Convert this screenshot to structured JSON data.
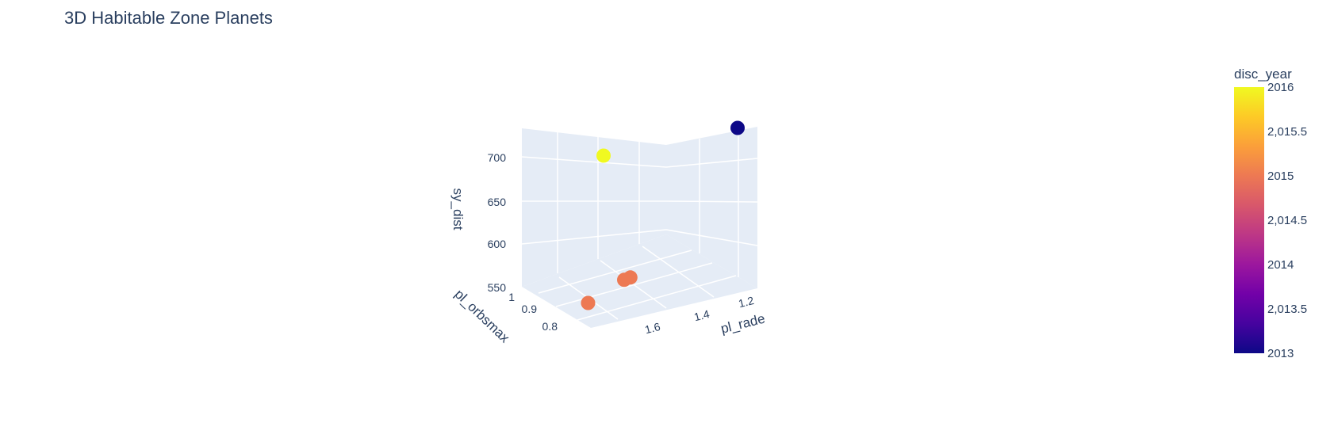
{
  "chart_data": {
    "type": "scatter",
    "title": "3D Habitable Zone Planets",
    "axes": {
      "x": {
        "label": "pl_rade",
        "ticks": [
          "1.2",
          "1.4",
          "1.6"
        ]
      },
      "y": {
        "label": "pl_orbsmax",
        "ticks": [
          "1",
          "0.9",
          "0.8"
        ]
      },
      "z": {
        "label": "sy_dist",
        "ticks": [
          "550",
          "600",
          "650",
          "700"
        ]
      }
    },
    "points": [
      {
        "pl_rade": 1.1,
        "pl_orbsmax": 1.0,
        "sy_dist": 720,
        "disc_year": 2013
      },
      {
        "pl_rade": 1.75,
        "pl_orbsmax": 1.0,
        "sy_dist": 730,
        "disc_year": 2016
      },
      {
        "pl_rade": 1.7,
        "pl_orbsmax": 0.95,
        "sy_dist": 560,
        "disc_year": 2015
      },
      {
        "pl_rade": 1.32,
        "pl_orbsmax": 0.88,
        "sy_dist": 580,
        "disc_year": 2015
      },
      {
        "pl_rade": 1.3,
        "pl_orbsmax": 0.86,
        "sy_dist": 580,
        "disc_year": 2015
      }
    ],
    "colorbar": {
      "title": "disc_year",
      "ticks": [
        "2016",
        "2,015.5",
        "2015",
        "2,014.5",
        "2014",
        "2,013.5",
        "2013"
      ],
      "range": [
        2013,
        2016
      ]
    },
    "colorscale": [
      "#0d0887",
      "#46039f",
      "#7201a8",
      "#9c179e",
      "#bd3786",
      "#d8576b",
      "#ed7953",
      "#fb9f3a",
      "#fdca26",
      "#f0f921"
    ],
    "background": "#e5ecf6"
  }
}
